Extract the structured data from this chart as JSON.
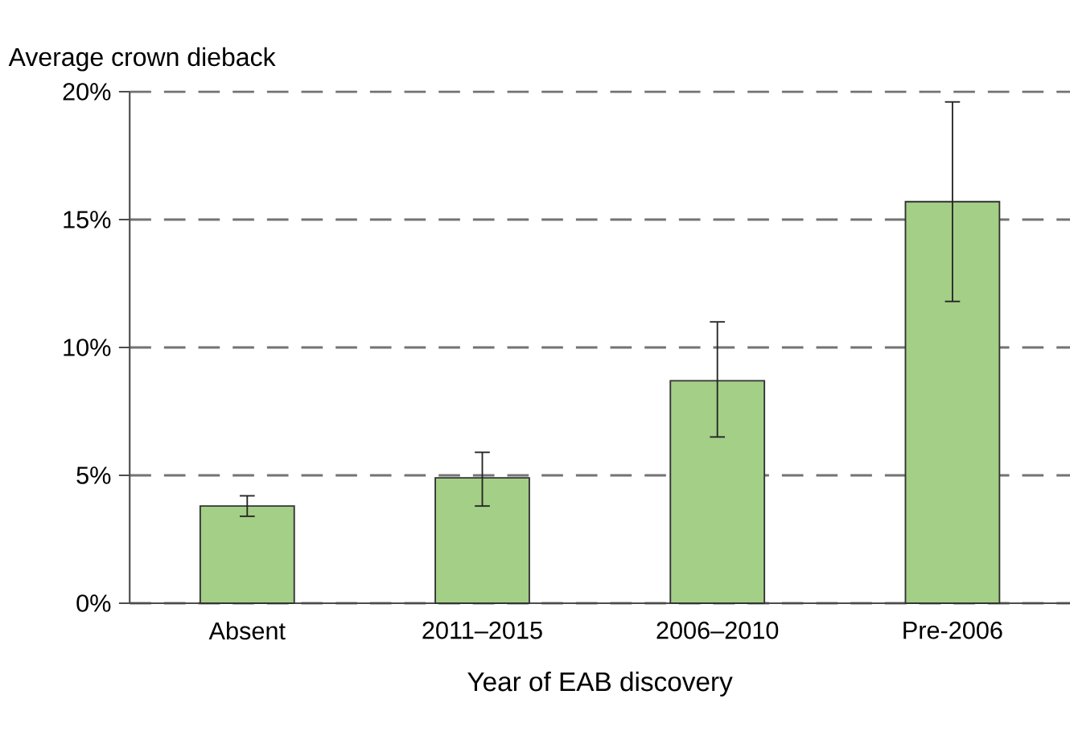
{
  "chart_data": {
    "type": "bar",
    "ylabel": "Average crown dieback",
    "xlabel": "Year of EAB discovery",
    "categories": [
      "Absent",
      "2011–2015",
      "2006–2010",
      "Pre-2006"
    ],
    "values": [
      3.8,
      4.9,
      8.7,
      15.7
    ],
    "errors": [
      [
        3.4,
        4.2
      ],
      [
        3.8,
        5.9
      ],
      [
        6.5,
        11.0
      ],
      [
        11.8,
        19.6
      ]
    ],
    "color": "#a3cf86",
    "ylim": [
      0,
      20
    ],
    "yticks": [
      {
        "value": 0,
        "label": "0%"
      },
      {
        "value": 5,
        "label": "5%"
      },
      {
        "value": 10,
        "label": "10%"
      },
      {
        "value": 15,
        "label": "15%"
      },
      {
        "value": 20,
        "label": "20%"
      }
    ],
    "grid": "y"
  }
}
